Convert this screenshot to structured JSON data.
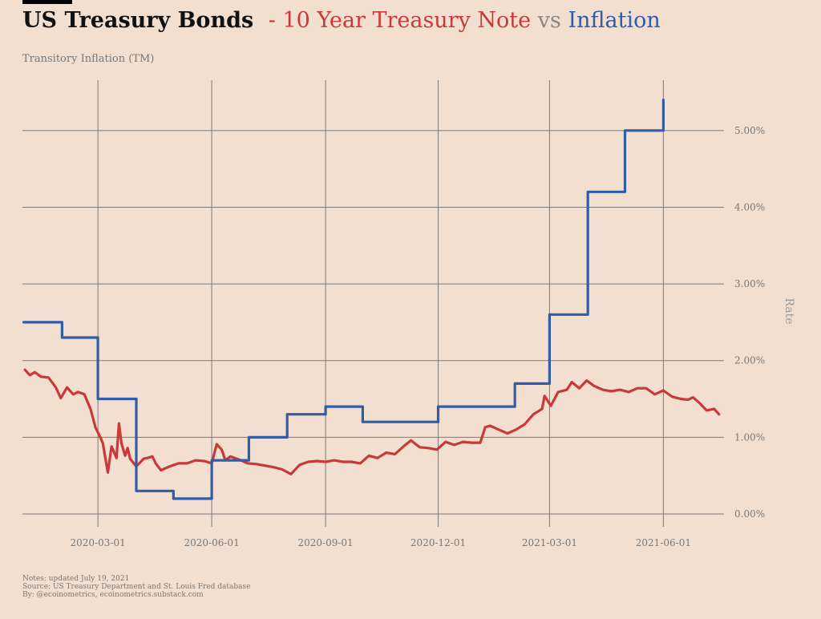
{
  "title": {
    "main": "US Treasury Bonds",
    "separator": "-",
    "series1": "10 Year Treasury Note",
    "vs": "vs",
    "series2": "Inflation"
  },
  "subtitle": "Transitory Inflation (TM)",
  "notes": [
    "Notes: updated July 19, 2021",
    "Source: US Treasury Department and St. Louis Fred database",
    "By: @ecoinometrics, ecoinometrics.substack.com"
  ],
  "chart_data": {
    "type": "line",
    "ylabel": "Rate",
    "ylim": [
      0,
      5.5
    ],
    "xlim": [
      "2019-12-31",
      "2021-07-20"
    ],
    "grid": true,
    "x_ticks": [
      "2020-03-01",
      "2020-06-01",
      "2020-09-01",
      "2020-12-01",
      "2021-03-01",
      "2021-06-01"
    ],
    "y_ticks": [
      0,
      1,
      2,
      3,
      4,
      5
    ],
    "y_tick_labels": [
      "0.00%",
      "1.00%",
      "2.00%",
      "3.00%",
      "4.00%",
      "5.00%"
    ],
    "colors": {
      "series1": "#c8393a",
      "series2": "#2f5da8",
      "background": "#f3dfd0"
    },
    "series": [
      {
        "name": "10 Year Treasury Note",
        "kind": "line",
        "points": [
          [
            "2020-01-02",
            1.88
          ],
          [
            "2020-01-06",
            1.81
          ],
          [
            "2020-01-10",
            1.85
          ],
          [
            "2020-01-15",
            1.79
          ],
          [
            "2020-01-21",
            1.78
          ],
          [
            "2020-01-27",
            1.65
          ],
          [
            "2020-01-31",
            1.51
          ],
          [
            "2020-02-05",
            1.65
          ],
          [
            "2020-02-10",
            1.56
          ],
          [
            "2020-02-14",
            1.59
          ],
          [
            "2020-02-19",
            1.56
          ],
          [
            "2020-02-24",
            1.37
          ],
          [
            "2020-02-28",
            1.13
          ],
          [
            "2020-03-03",
            1.0
          ],
          [
            "2020-03-05",
            0.92
          ],
          [
            "2020-03-09",
            0.54
          ],
          [
            "2020-03-12",
            0.88
          ],
          [
            "2020-03-16",
            0.73
          ],
          [
            "2020-03-18",
            1.18
          ],
          [
            "2020-03-20",
            0.92
          ],
          [
            "2020-03-23",
            0.76
          ],
          [
            "2020-03-25",
            0.86
          ],
          [
            "2020-03-27",
            0.72
          ],
          [
            "2020-04-01",
            0.62
          ],
          [
            "2020-04-07",
            0.72
          ],
          [
            "2020-04-10",
            0.73
          ],
          [
            "2020-04-14",
            0.75
          ],
          [
            "2020-04-17",
            0.65
          ],
          [
            "2020-04-21",
            0.57
          ],
          [
            "2020-04-28",
            0.62
          ],
          [
            "2020-05-05",
            0.66
          ],
          [
            "2020-05-12",
            0.66
          ],
          [
            "2020-05-19",
            0.7
          ],
          [
            "2020-05-26",
            0.69
          ],
          [
            "2020-06-01",
            0.66
          ],
          [
            "2020-06-05",
            0.91
          ],
          [
            "2020-06-09",
            0.84
          ],
          [
            "2020-06-12",
            0.7
          ],
          [
            "2020-06-16",
            0.75
          ],
          [
            "2020-06-23",
            0.71
          ],
          [
            "2020-06-30",
            0.66
          ],
          [
            "2020-07-07",
            0.65
          ],
          [
            "2020-07-14",
            0.63
          ],
          [
            "2020-07-21",
            0.61
          ],
          [
            "2020-07-28",
            0.58
          ],
          [
            "2020-08-04",
            0.52
          ],
          [
            "2020-08-11",
            0.64
          ],
          [
            "2020-08-18",
            0.68
          ],
          [
            "2020-08-25",
            0.69
          ],
          [
            "2020-09-01",
            0.68
          ],
          [
            "2020-09-08",
            0.7
          ],
          [
            "2020-09-15",
            0.68
          ],
          [
            "2020-09-22",
            0.68
          ],
          [
            "2020-09-29",
            0.66
          ],
          [
            "2020-10-06",
            0.76
          ],
          [
            "2020-10-13",
            0.73
          ],
          [
            "2020-10-20",
            0.8
          ],
          [
            "2020-10-27",
            0.78
          ],
          [
            "2020-11-03",
            0.88
          ],
          [
            "2020-11-09",
            0.96
          ],
          [
            "2020-11-16",
            0.87
          ],
          [
            "2020-11-23",
            0.86
          ],
          [
            "2020-11-30",
            0.84
          ],
          [
            "2020-12-07",
            0.94
          ],
          [
            "2020-12-14",
            0.9
          ],
          [
            "2020-12-21",
            0.94
          ],
          [
            "2020-12-28",
            0.93
          ],
          [
            "2021-01-04",
            0.93
          ],
          [
            "2021-01-08",
            1.13
          ],
          [
            "2021-01-12",
            1.15
          ],
          [
            "2021-01-19",
            1.1
          ],
          [
            "2021-01-26",
            1.05
          ],
          [
            "2021-02-02",
            1.1
          ],
          [
            "2021-02-09",
            1.17
          ],
          [
            "2021-02-16",
            1.3
          ],
          [
            "2021-02-23",
            1.37
          ],
          [
            "2021-02-25",
            1.54
          ],
          [
            "2021-03-02",
            1.41
          ],
          [
            "2021-03-08",
            1.59
          ],
          [
            "2021-03-15",
            1.62
          ],
          [
            "2021-03-19",
            1.72
          ],
          [
            "2021-03-25",
            1.64
          ],
          [
            "2021-03-31",
            1.74
          ],
          [
            "2021-04-06",
            1.67
          ],
          [
            "2021-04-13",
            1.62
          ],
          [
            "2021-04-20",
            1.6
          ],
          [
            "2021-04-27",
            1.62
          ],
          [
            "2021-05-04",
            1.59
          ],
          [
            "2021-05-11",
            1.64
          ],
          [
            "2021-05-18",
            1.64
          ],
          [
            "2021-05-25",
            1.56
          ],
          [
            "2021-06-01",
            1.61
          ],
          [
            "2021-06-08",
            1.53
          ],
          [
            "2021-06-15",
            1.5
          ],
          [
            "2021-06-21",
            1.49
          ],
          [
            "2021-06-25",
            1.52
          ],
          [
            "2021-06-30",
            1.45
          ],
          [
            "2021-07-06",
            1.35
          ],
          [
            "2021-07-09",
            1.36
          ],
          [
            "2021-07-12",
            1.37
          ],
          [
            "2021-07-16",
            1.3
          ]
        ]
      },
      {
        "name": "Inflation",
        "kind": "step",
        "points": [
          [
            "2020-01-01",
            2.5
          ],
          [
            "2020-02-01",
            2.3
          ],
          [
            "2020-03-01",
            1.5
          ],
          [
            "2020-04-01",
            0.3
          ],
          [
            "2020-05-01",
            0.2
          ],
          [
            "2020-06-01",
            0.7
          ],
          [
            "2020-07-01",
            1.0
          ],
          [
            "2020-08-01",
            1.3
          ],
          [
            "2020-09-01",
            1.4
          ],
          [
            "2020-10-01",
            1.2
          ],
          [
            "2020-11-01",
            1.2
          ],
          [
            "2020-12-01",
            1.4
          ],
          [
            "2021-01-01",
            1.4
          ],
          [
            "2021-02-01",
            1.7
          ],
          [
            "2021-03-01",
            2.6
          ],
          [
            "2021-04-01",
            4.2
          ],
          [
            "2021-05-01",
            5.0
          ],
          [
            "2021-06-01",
            5.4
          ]
        ]
      }
    ]
  }
}
